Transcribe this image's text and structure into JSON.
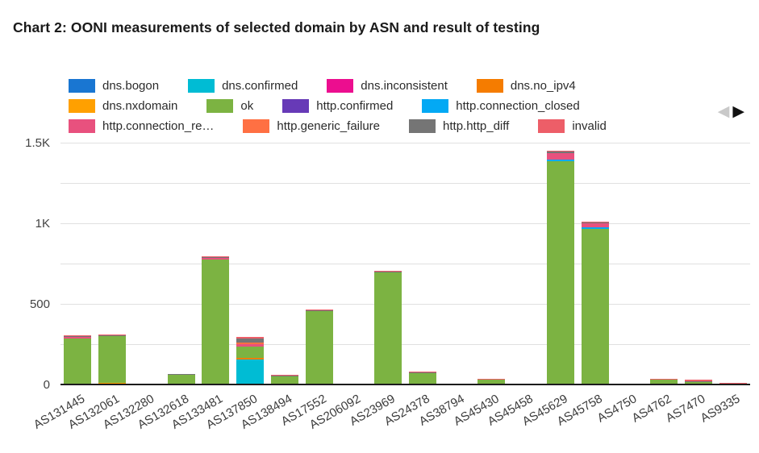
{
  "title": "Chart 2: OONI measurements of selected domain by ASN and result of testing",
  "legend_nav": {
    "prev_icon": "◀",
    "next_icon": "▶"
  },
  "chart_data": {
    "type": "bar",
    "stacked": true,
    "title": "Chart 2: OONI measurements of selected domain by ASN and result of testing",
    "xlabel": "",
    "ylabel": "",
    "legend_position": "top",
    "grid": true,
    "ylim": [
      0,
      1540
    ],
    "gridline_step": 250,
    "y_axis": {
      "tick_labels": [
        "0",
        "500",
        "1K",
        "1.5K"
      ],
      "tick_values": [
        0,
        500,
        1000,
        1500
      ]
    },
    "categories": [
      "AS131445",
      "AS132061",
      "AS132280",
      "AS132618",
      "AS133481",
      "AS137850",
      "AS138494",
      "AS17552",
      "AS206092",
      "AS23969",
      "AS24378",
      "AS38794",
      "AS45430",
      "AS45458",
      "AS45629",
      "AS45758",
      "AS4750",
      "AS4762",
      "AS7470",
      "AS9335"
    ],
    "series": [
      {
        "name": "dns.bogon",
        "color": "#1976D2",
        "values": [
          0,
          0,
          0,
          0,
          0,
          0,
          0,
          0,
          0,
          0,
          0,
          0,
          0,
          0,
          0,
          0,
          0,
          0,
          0,
          0
        ]
      },
      {
        "name": "dns.confirmed",
        "color": "#00BCD4",
        "values": [
          0,
          0,
          0,
          0,
          0,
          155,
          0,
          0,
          0,
          0,
          0,
          0,
          0,
          0,
          0,
          0,
          0,
          0,
          0,
          0
        ]
      },
      {
        "name": "dns.inconsistent",
        "color": "#EC0E8F",
        "values": [
          0,
          0,
          0,
          0,
          0,
          0,
          0,
          0,
          0,
          0,
          0,
          0,
          0,
          0,
          0,
          0,
          0,
          0,
          0,
          0
        ]
      },
      {
        "name": "dns.no_ipv4",
        "color": "#F57C00",
        "values": [
          0,
          0,
          0,
          0,
          0,
          12,
          0,
          0,
          0,
          0,
          0,
          0,
          0,
          0,
          0,
          0,
          0,
          0,
          0,
          0
        ]
      },
      {
        "name": "dns.nxdomain",
        "color": "#FFA000",
        "values": [
          0,
          8,
          0,
          0,
          0,
          0,
          0,
          0,
          0,
          0,
          0,
          0,
          0,
          0,
          0,
          0,
          0,
          0,
          0,
          0
        ]
      },
      {
        "name": "ok",
        "color": "#7CB342",
        "values": [
          285,
          292,
          0,
          60,
          775,
          70,
          50,
          455,
          0,
          695,
          72,
          0,
          28,
          0,
          1385,
          965,
          0,
          28,
          15,
          0
        ]
      },
      {
        "name": "http.confirmed",
        "color": "#673AB7",
        "values": [
          0,
          0,
          0,
          0,
          0,
          0,
          0,
          0,
          0,
          0,
          0,
          0,
          0,
          0,
          0,
          0,
          0,
          0,
          0,
          0
        ]
      },
      {
        "name": "http.connection_closed",
        "color": "#03A9F4",
        "values": [
          0,
          0,
          0,
          0,
          0,
          0,
          0,
          0,
          0,
          0,
          0,
          0,
          0,
          0,
          10,
          8,
          0,
          0,
          0,
          0
        ]
      },
      {
        "name": "http.connection_re…",
        "color": "#E8517E",
        "values": [
          12,
          0,
          0,
          0,
          10,
          15,
          0,
          0,
          0,
          0,
          0,
          0,
          0,
          0,
          40,
          25,
          0,
          0,
          0,
          0
        ]
      },
      {
        "name": "http.generic_failure",
        "color": "#FF7043",
        "values": [
          0,
          0,
          0,
          0,
          0,
          10,
          0,
          0,
          0,
          0,
          0,
          0,
          0,
          0,
          0,
          0,
          0,
          0,
          0,
          0
        ]
      },
      {
        "name": "http.http_diff",
        "color": "#757575",
        "values": [
          5,
          5,
          0,
          3,
          4,
          25,
          3,
          3,
          0,
          4,
          3,
          0,
          3,
          0,
          8,
          6,
          0,
          3,
          6,
          4
        ]
      },
      {
        "name": "invalid",
        "color": "#ED5E68",
        "values": [
          5,
          5,
          5,
          4,
          5,
          10,
          5,
          5,
          0,
          6,
          5,
          0,
          5,
          0,
          8,
          6,
          0,
          5,
          8,
          6
        ]
      }
    ]
  }
}
